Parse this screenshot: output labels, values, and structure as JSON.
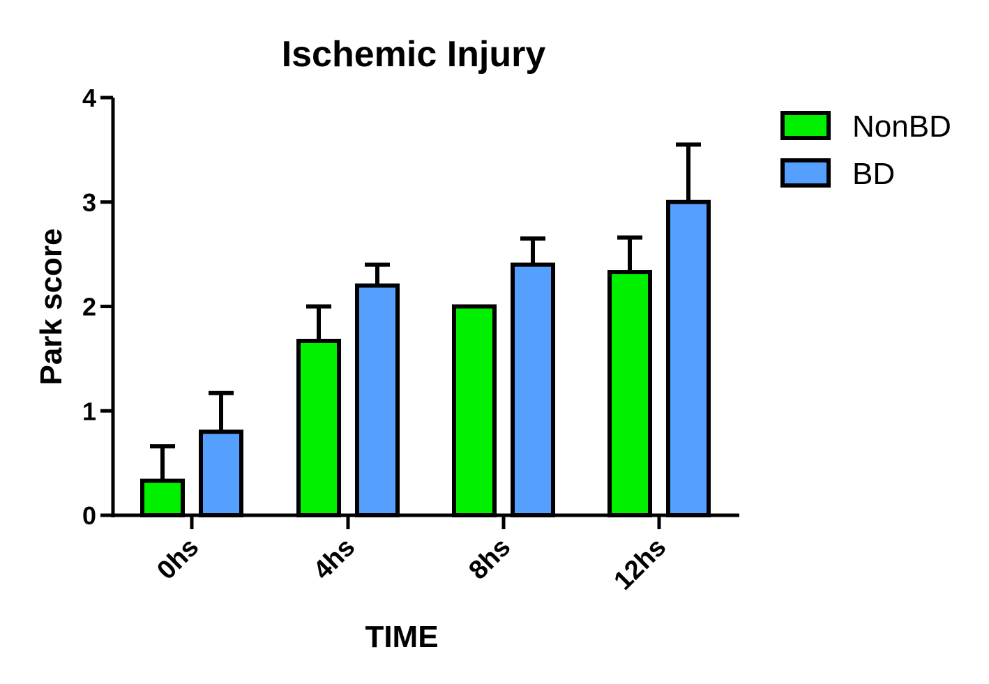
{
  "chart_data": {
    "type": "bar",
    "title": "Ischemic Injury",
    "xlabel": "TIME",
    "ylabel": "Park score",
    "categories": [
      "0hs",
      "4hs",
      "8hs",
      "12hs"
    ],
    "ylim": [
      0,
      4
    ],
    "yticks": [
      "0",
      "1",
      "2",
      "3",
      "4"
    ],
    "series": [
      {
        "name": "NonBD",
        "color": "#00f000",
        "values": [
          0.33,
          1.67,
          2.0,
          2.33
        ],
        "error": [
          0.33,
          0.33,
          0.0,
          0.33
        ]
      },
      {
        "name": "BD",
        "color": "#55a0ff",
        "values": [
          0.8,
          2.2,
          2.4,
          3.0
        ],
        "error": [
          0.37,
          0.2,
          0.25,
          0.55
        ]
      }
    ],
    "legend": "top-right",
    "grid": false
  }
}
